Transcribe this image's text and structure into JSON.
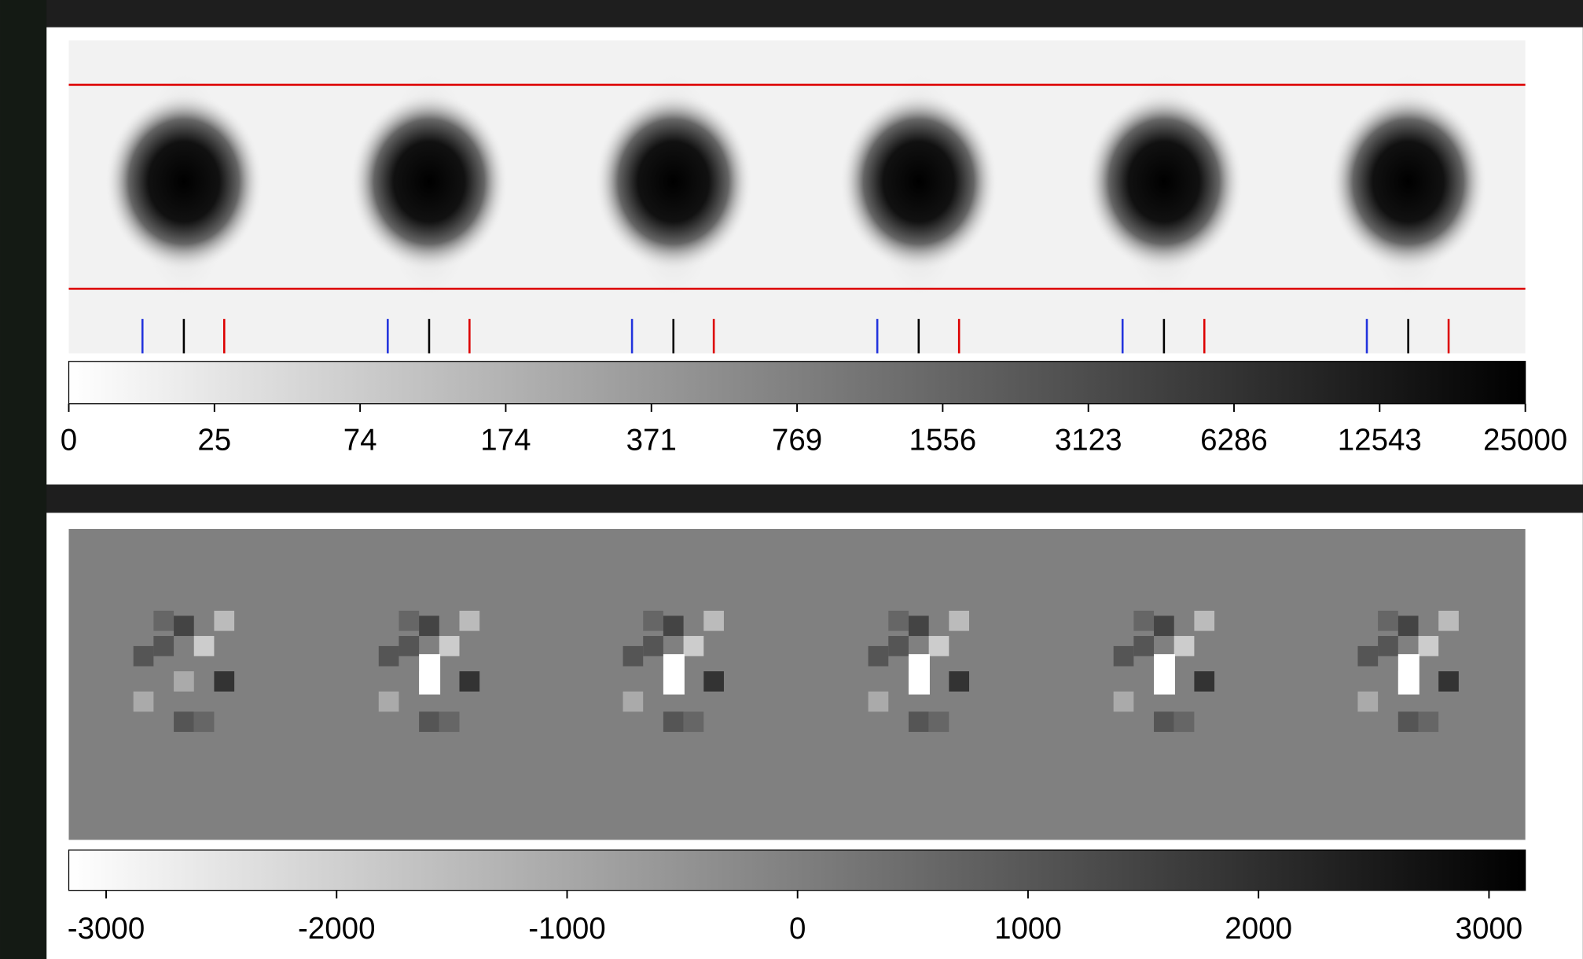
{
  "top_colorbar": {
    "ticks": [
      0,
      25,
      74,
      174,
      371,
      769,
      1556,
      3123,
      6286,
      12543,
      25000
    ]
  },
  "bottom_colorbar": {
    "ticks": [
      -3000,
      -2000,
      -1000,
      0,
      1000,
      2000,
      3000
    ]
  }
}
